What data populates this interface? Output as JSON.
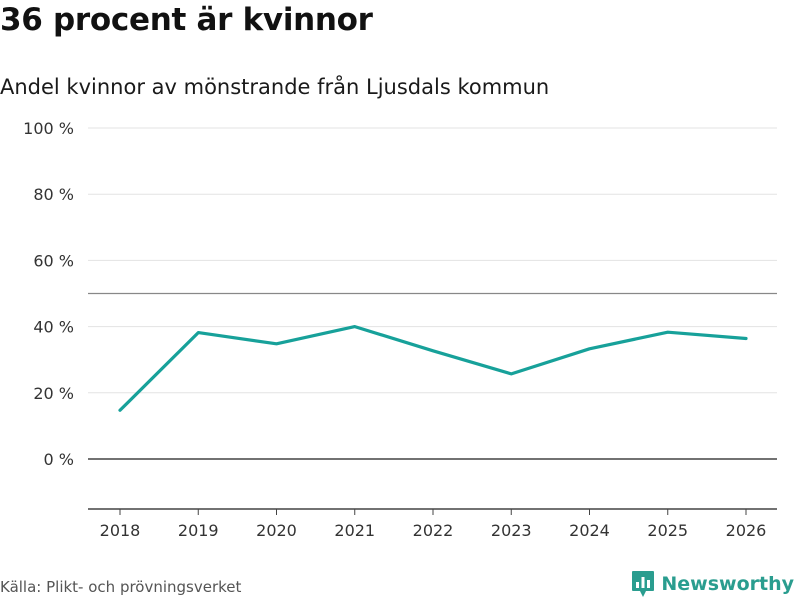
{
  "title": "36 procent är kvinnor",
  "subtitle": "Andel kvinnor av mönstrande från Ljusdals kommun",
  "source": "Källa: Plikt- och prövningsverket",
  "brand": "Newsworthy",
  "colors": {
    "line": "#17a19a",
    "brand": "#2a9d8f",
    "grid": "#e3e3e3",
    "axis": "#444444",
    "reference": "#888888"
  },
  "chart_data": {
    "type": "line",
    "title": "36 procent är kvinnor",
    "subtitle": "Andel kvinnor av mönstrande från Ljusdals kommun",
    "xlabel": "",
    "ylabel": "",
    "x": [
      "2018",
      "2019",
      "2020",
      "2021",
      "2022",
      "2023",
      "2024",
      "2025",
      "2026"
    ],
    "series": [
      {
        "name": "Andel kvinnor",
        "values": [
          14.7,
          38.2,
          34.8,
          40.0,
          32.7,
          25.7,
          33.3,
          38.3,
          36.4
        ]
      }
    ],
    "ylim": [
      -15,
      100
    ],
    "yticks": [
      0,
      20,
      40,
      60,
      80,
      100
    ],
    "ytick_labels": [
      "0 %",
      "20 %",
      "40 %",
      "60 %",
      "80 %",
      "100 %"
    ],
    "reference_line": 50,
    "grid": true
  }
}
